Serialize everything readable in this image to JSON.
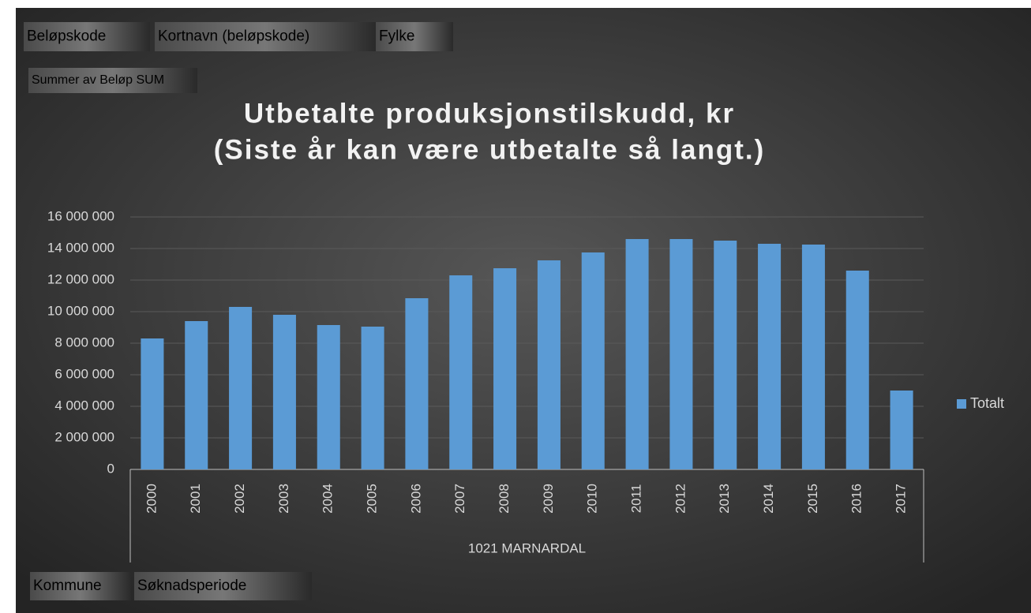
{
  "chart_data": {
    "type": "bar",
    "title": [
      "Utbetalte produksjonstilskudd, kr",
      "(Siste år kan være utbetalte så langt.)"
    ],
    "pivot_fields": {
      "filters": [
        "Beløpskode",
        "Kortnavn (beløpskode)",
        "Fylke"
      ],
      "values": [
        "Summer av Beløp SUM"
      ],
      "axis": [
        "Kommune",
        "Søknadsperiode"
      ]
    },
    "group_label": "1021 MARNARDAL",
    "categories": [
      "2000",
      "2001",
      "2002",
      "2003",
      "2004",
      "2005",
      "2006",
      "2007",
      "2008",
      "2009",
      "2010",
      "2011",
      "2012",
      "2013",
      "2014",
      "2015",
      "2016",
      "2017"
    ],
    "series": [
      {
        "name": "Totalt",
        "color": "#5b9bd5",
        "values": [
          8300000,
          9400000,
          10300000,
          9800000,
          9150000,
          9050000,
          10850000,
          12300000,
          12750000,
          13250000,
          13750000,
          14600000,
          14600000,
          14500000,
          14300000,
          14250000,
          12600000,
          5000000
        ]
      }
    ],
    "ylim": [
      0,
      16000000
    ],
    "yticks": [
      0,
      {
        "value": 2000000,
        "label": "2 000 000"
      },
      {
        "value": 4000000,
        "label": "4 000 000"
      },
      {
        "value": 6000000,
        "label": "6 000 000"
      },
      {
        "value": 8000000,
        "label": "8 000 000"
      },
      {
        "value": 10000000,
        "label": "10 000 000"
      },
      {
        "value": 12000000,
        "label": "12 000 000"
      },
      {
        "value": 14000000,
        "label": "14 000 000"
      },
      {
        "value": 16000000,
        "label": "16 000 000"
      }
    ],
    "grid": true,
    "legend": "right"
  }
}
